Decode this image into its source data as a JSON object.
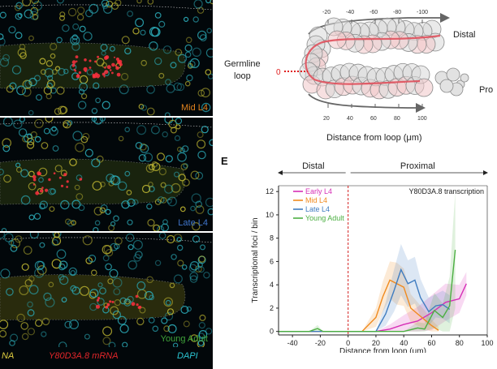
{
  "micrographs": [
    {
      "label": "Mid L4",
      "label_color": "#e0821e"
    },
    {
      "label": "Late L4",
      "label_color": "#3f74c9"
    },
    {
      "label": "Young Adult",
      "label_color": "#3fa33a"
    }
  ],
  "channel_legend": {
    "left_fragment": "NA",
    "mrna": "Y80D3A.8 mRNA",
    "dapi": "DAPI",
    "colors": {
      "left": "#e3d040",
      "mrna": "#e2262a",
      "dapi": "#2bc6d3"
    }
  },
  "schematic": {
    "top_ticks": [
      "-20",
      "-40",
      "-60",
      "-80",
      "-100"
    ],
    "bottom_ticks": [
      "20",
      "40",
      "60",
      "80",
      "100"
    ],
    "zero_label": "0",
    "germline_label_line1": "Germline",
    "germline_label_line2": "loop",
    "distal_label": "Distal",
    "proximal_fragment": "Pro",
    "axis_label": "Distance from loop (μm)"
  },
  "panel_letter": "E",
  "chart_data": {
    "type": "line",
    "title": "Y80D3A.8 transcription",
    "xlabel": "Distance from loop (μm)",
    "ylabel": "Transcriptional foci / bin",
    "xlim": [
      -50,
      100
    ],
    "ylim": [
      -0.3,
      12.5
    ],
    "xticks": [
      -40,
      -20,
      0,
      20,
      40,
      60,
      80,
      100
    ],
    "yticks": [
      0,
      2,
      4,
      6,
      8,
      10,
      12
    ],
    "region_labels": {
      "distal": "Distal",
      "proximal": "Proximal"
    },
    "loop_line_x": 0,
    "legend_position": "top-left",
    "series": [
      {
        "name": "Early L4",
        "color": "#d62fb6",
        "x": [
          -50,
          10,
          20,
          30,
          40,
          50,
          60,
          70,
          80,
          85
        ],
        "y": [
          0,
          0,
          0,
          0.2,
          0.6,
          0.9,
          1.6,
          2.5,
          2.8,
          4.1
        ],
        "band": [
          0,
          0,
          0,
          0.4,
          0.8,
          1.2,
          1.5,
          1.6,
          1.2,
          1.0
        ]
      },
      {
        "name": "Mid L4",
        "color": "#f08a1e",
        "x": [
          -50,
          10,
          20,
          25,
          30,
          35,
          40,
          45,
          50,
          55,
          60,
          65
        ],
        "y": [
          0,
          0,
          1.2,
          3.0,
          4.4,
          4.1,
          3.8,
          2.0,
          1.5,
          1.0,
          0.5,
          0.1
        ],
        "band": [
          0,
          0,
          0.8,
          1.3,
          1.6,
          1.8,
          1.6,
          1.2,
          1.0,
          0.8,
          0.5,
          0.3
        ]
      },
      {
        "name": "Late L4",
        "color": "#3f7cc0",
        "x": [
          -50,
          20,
          27,
          33,
          38,
          43,
          48,
          52,
          58,
          63,
          68,
          73
        ],
        "y": [
          0,
          0,
          1.5,
          3.5,
          5.3,
          4.1,
          4.4,
          2.9,
          1.7,
          2.2,
          2.3,
          1.9
        ],
        "band": [
          0,
          0,
          1.0,
          1.8,
          2.2,
          2.0,
          2.0,
          1.6,
          1.2,
          1.0,
          1.2,
          1.2
        ]
      },
      {
        "name": "Young Adult",
        "color": "#4caf42",
        "x": [
          -50,
          -28,
          -22,
          -18,
          40,
          50,
          55,
          62,
          68,
          73,
          77
        ],
        "y": [
          0,
          0,
          0.25,
          0,
          0,
          0.3,
          0.2,
          1.8,
          1.2,
          2.2,
          7.0
        ],
        "band": [
          0,
          0,
          0.3,
          0,
          0,
          0.5,
          0.5,
          1.5,
          1.2,
          2.5,
          5.0
        ]
      }
    ]
  }
}
